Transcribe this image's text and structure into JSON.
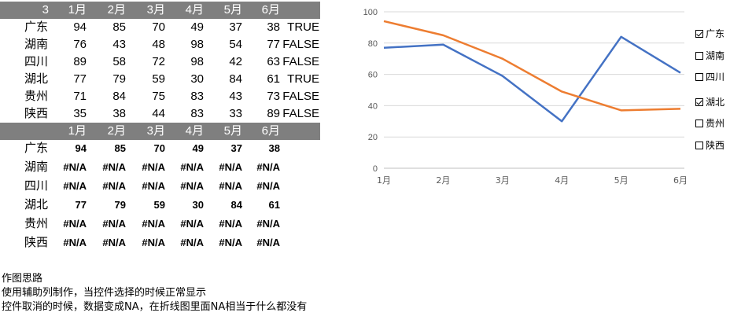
{
  "table1": {
    "corner": "3",
    "months": [
      "1月",
      "2月",
      "3月",
      "4月",
      "5月",
      "6月"
    ],
    "rows": [
      {
        "name": "广东",
        "values": [
          "94",
          "85",
          "70",
          "49",
          "37",
          "38"
        ],
        "flag": "TRUE"
      },
      {
        "name": "湖南",
        "values": [
          "76",
          "43",
          "48",
          "98",
          "54",
          "77"
        ],
        "flag": "FALSE"
      },
      {
        "name": "四川",
        "values": [
          "89",
          "58",
          "72",
          "98",
          "42",
          "63"
        ],
        "flag": "FALSE"
      },
      {
        "name": "湖北",
        "values": [
          "77",
          "79",
          "59",
          "30",
          "84",
          "61"
        ],
        "flag": "TRUE"
      },
      {
        "name": "贵州",
        "values": [
          "71",
          "84",
          "75",
          "83",
          "43",
          "73"
        ],
        "flag": "FALSE"
      },
      {
        "name": "陕西",
        "values": [
          "35",
          "38",
          "44",
          "83",
          "33",
          "89"
        ],
        "flag": "FALSE"
      }
    ]
  },
  "table2": {
    "months": [
      "1月",
      "2月",
      "3月",
      "4月",
      "5月",
      "6月"
    ],
    "rows": [
      {
        "name": "广东",
        "values": [
          "94",
          "85",
          "70",
          "49",
          "37",
          "38"
        ]
      },
      {
        "name": "湖南",
        "values": [
          "#N/A",
          "#N/A",
          "#N/A",
          "#N/A",
          "#N/A",
          "#N/A"
        ]
      },
      {
        "name": "四川",
        "values": [
          "#N/A",
          "#N/A",
          "#N/A",
          "#N/A",
          "#N/A",
          "#N/A"
        ]
      },
      {
        "name": "湖北",
        "values": [
          "77",
          "79",
          "59",
          "30",
          "84",
          "61"
        ]
      },
      {
        "name": "贵州",
        "values": [
          "#N/A",
          "#N/A",
          "#N/A",
          "#N/A",
          "#N/A",
          "#N/A"
        ]
      },
      {
        "name": "陕西",
        "values": [
          "#N/A",
          "#N/A",
          "#N/A",
          "#N/A",
          "#N/A",
          "#N/A"
        ]
      }
    ]
  },
  "chart_data": {
    "type": "line",
    "x": [
      "1月",
      "2月",
      "3月",
      "4月",
      "5月",
      "6月"
    ],
    "yticks": [
      "0",
      "20",
      "40",
      "60",
      "80",
      "100"
    ],
    "ylim": [
      0,
      100
    ],
    "grid": true,
    "series": [
      {
        "name": "广东",
        "values": [
          94,
          85,
          70,
          49,
          37,
          38
        ],
        "color": "#ed7d31"
      },
      {
        "name": "湖北",
        "values": [
          77,
          79,
          59,
          30,
          84,
          61
        ],
        "color": "#4472c4"
      }
    ]
  },
  "legend": [
    {
      "label": "广东",
      "checked": true
    },
    {
      "label": "湖南",
      "checked": false
    },
    {
      "label": "四川",
      "checked": false
    },
    {
      "label": "湖北",
      "checked": true
    },
    {
      "label": "贵州",
      "checked": false
    },
    {
      "label": "陕西",
      "checked": false
    }
  ],
  "notes": {
    "line1": "作图思路",
    "line2": "使用辅助列制作，当控件选择的时候正常显示",
    "line3": "控件取消的时候，数据变成NA，在折线图里面NA相当于什么都没有"
  }
}
